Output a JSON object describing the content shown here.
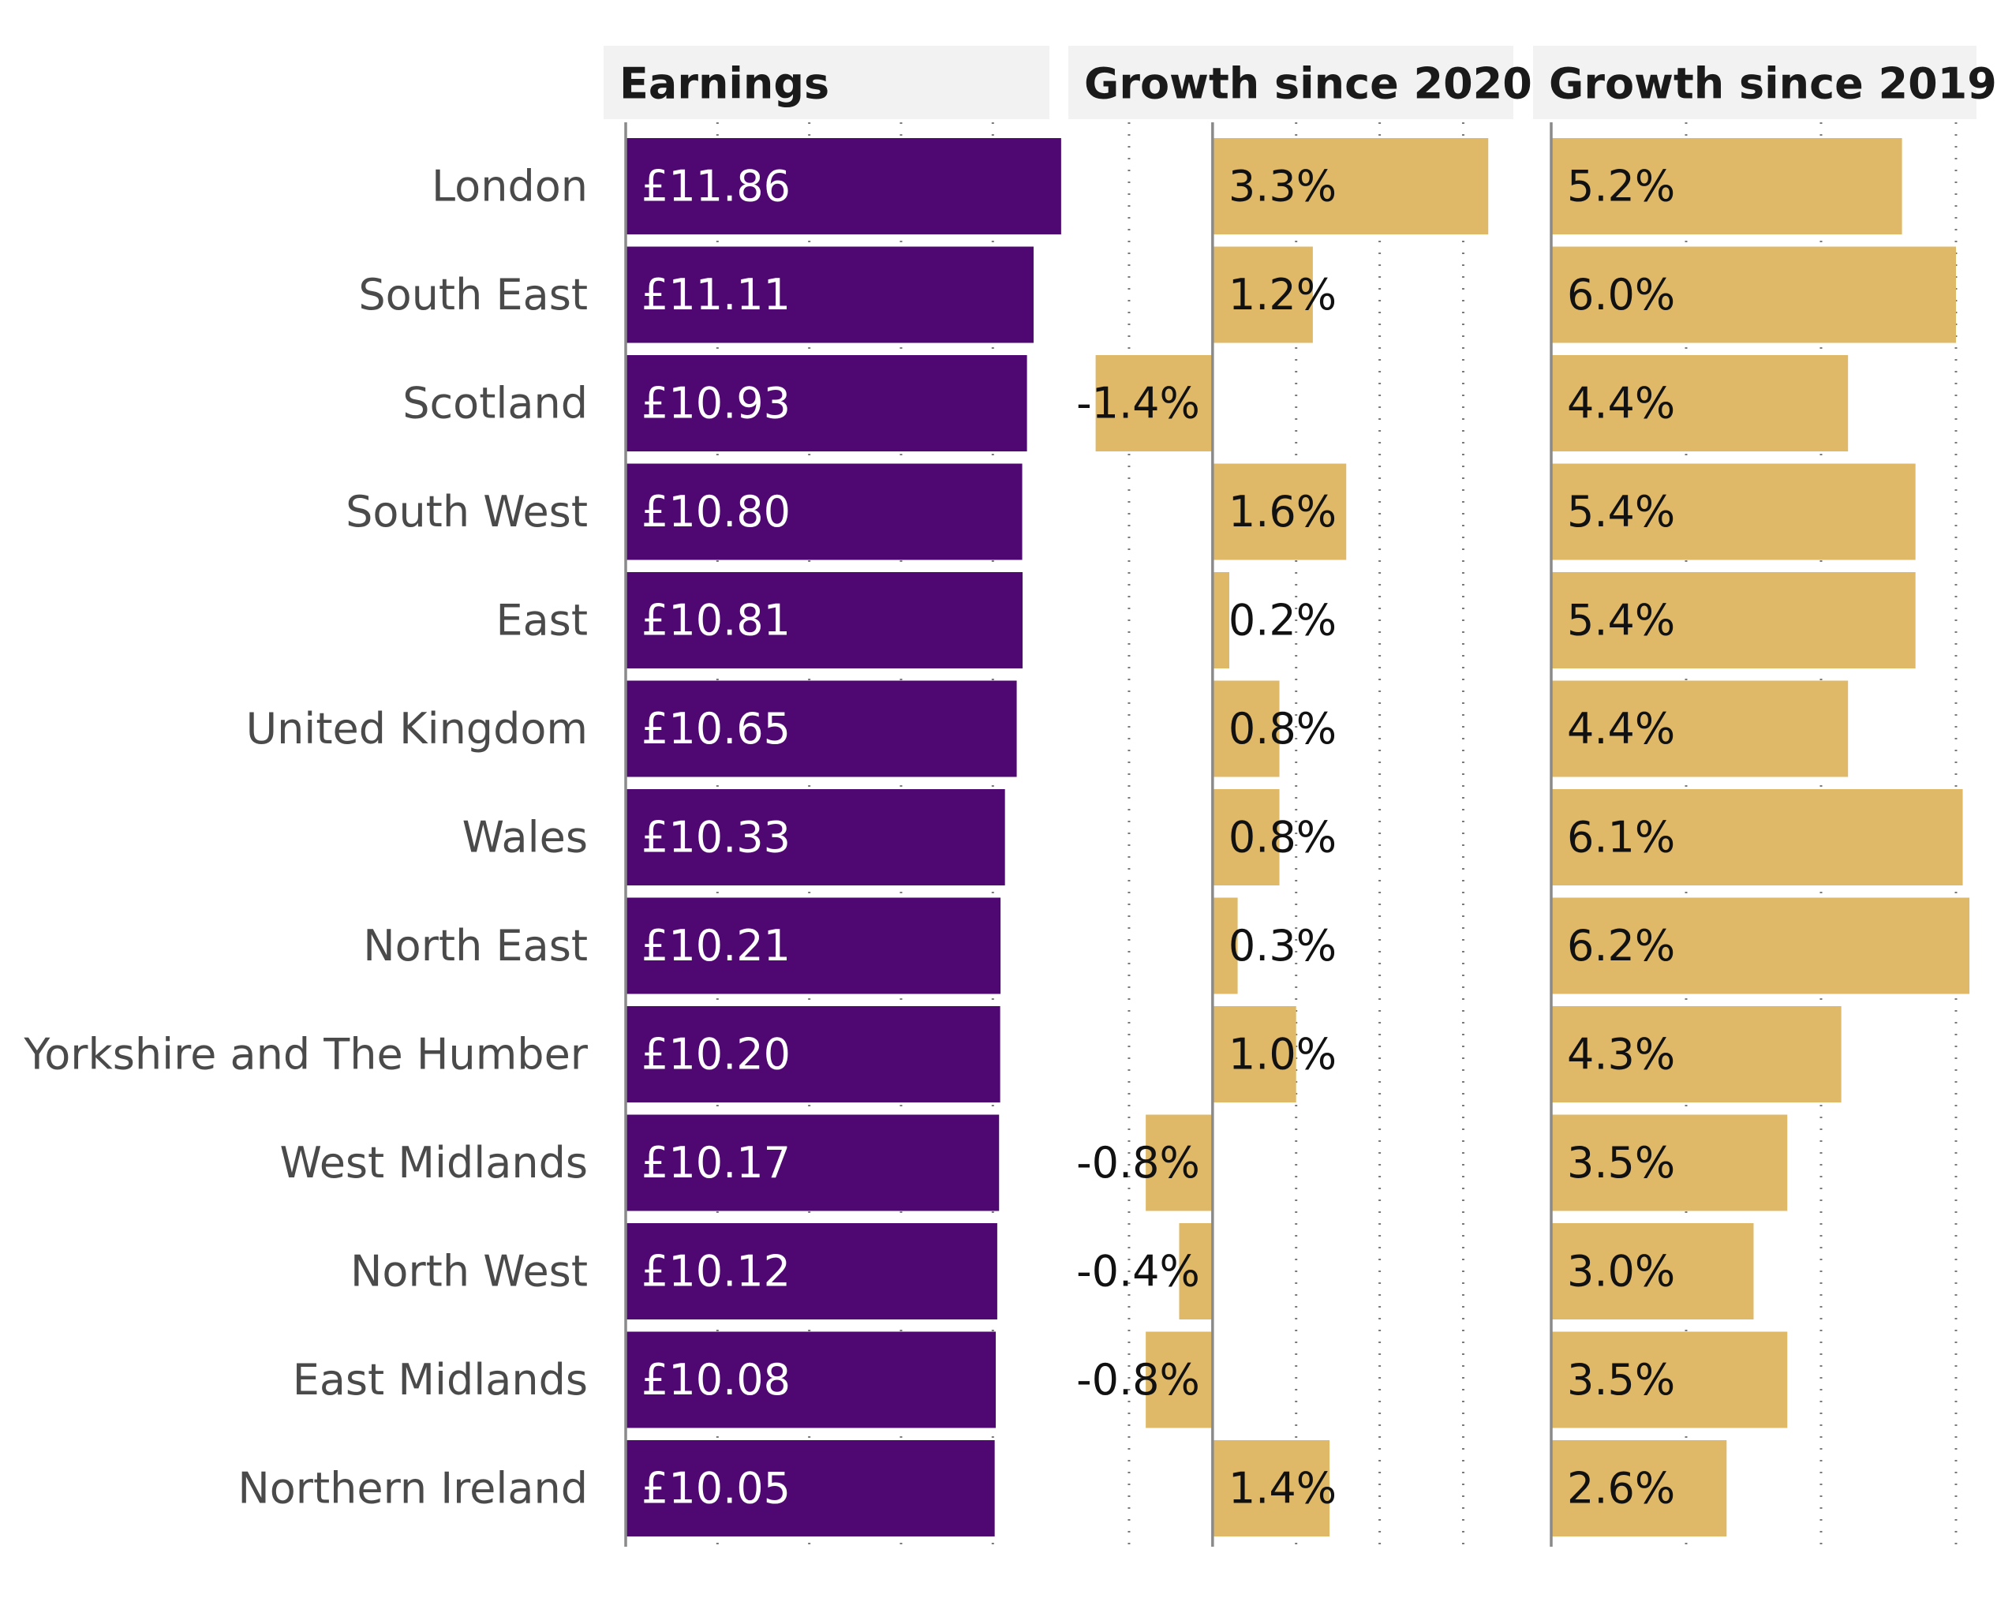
{
  "chart_data": {
    "type": "bar",
    "layout": "three horizontal bar panels sharing a region axis",
    "categories": [
      "London",
      "South East",
      "Scotland",
      "South West",
      "East",
      "United Kingdom",
      "Wales",
      "North East",
      "Yorkshire and The Humber",
      "West Midlands",
      "North West",
      "East Midlands",
      "Northern Ireland"
    ],
    "panels": [
      {
        "name": "earnings",
        "title": "Earnings",
        "values": [
          11.86,
          11.11,
          10.93,
          10.8,
          10.81,
          10.65,
          10.33,
          10.21,
          10.2,
          10.17,
          10.12,
          10.08,
          10.05
        ],
        "labels": [
          "£11.86",
          "£11.11",
          "£10.93",
          "£10.80",
          "£10.81",
          "£10.65",
          "£10.33",
          "£10.21",
          "£10.20",
          "£10.17",
          "£10.12",
          "£10.08",
          "£10.05"
        ],
        "xlim": [
          0,
          12.4
        ],
        "gridlines": [
          2.5,
          5,
          7.5,
          10
        ],
        "color": "#4f0871",
        "label_color": "#ffffff"
      },
      {
        "name": "growth-2020",
        "title": "Growth since 2020",
        "values": [
          3.3,
          1.2,
          -1.4,
          1.6,
          0.2,
          0.8,
          0.8,
          0.3,
          1.0,
          -0.8,
          -0.4,
          -0.8,
          1.4
        ],
        "labels": [
          "3.3%",
          "1.2%",
          "-1.4%",
          "1.6%",
          "0.2%",
          "0.8%",
          "0.8%",
          "0.3%",
          "1.0%",
          "-0.8%",
          "-0.4%",
          "-0.8%",
          "1.4%"
        ],
        "xlim": [
          -1.5,
          3.6
        ],
        "gridlines": [
          -1,
          1,
          2,
          3
        ],
        "color": "#dfb968",
        "label_color": "#111111"
      },
      {
        "name": "growth-2019",
        "title": "Growth since 2019",
        "values": [
          5.2,
          6.0,
          4.4,
          5.4,
          5.4,
          4.4,
          6.1,
          6.2,
          4.3,
          3.5,
          3.0,
          3.5,
          2.6
        ],
        "labels": [
          "5.2%",
          "6.0%",
          "4.4%",
          "5.4%",
          "5.4%",
          "4.4%",
          "6.1%",
          "6.2%",
          "4.3%",
          "3.5%",
          "3.0%",
          "3.5%",
          "2.6%"
        ],
        "xlim": [
          0,
          6.55
        ],
        "gridlines": [
          2,
          4,
          6
        ],
        "color": "#dfb968",
        "label_color": "#111111"
      }
    ]
  }
}
